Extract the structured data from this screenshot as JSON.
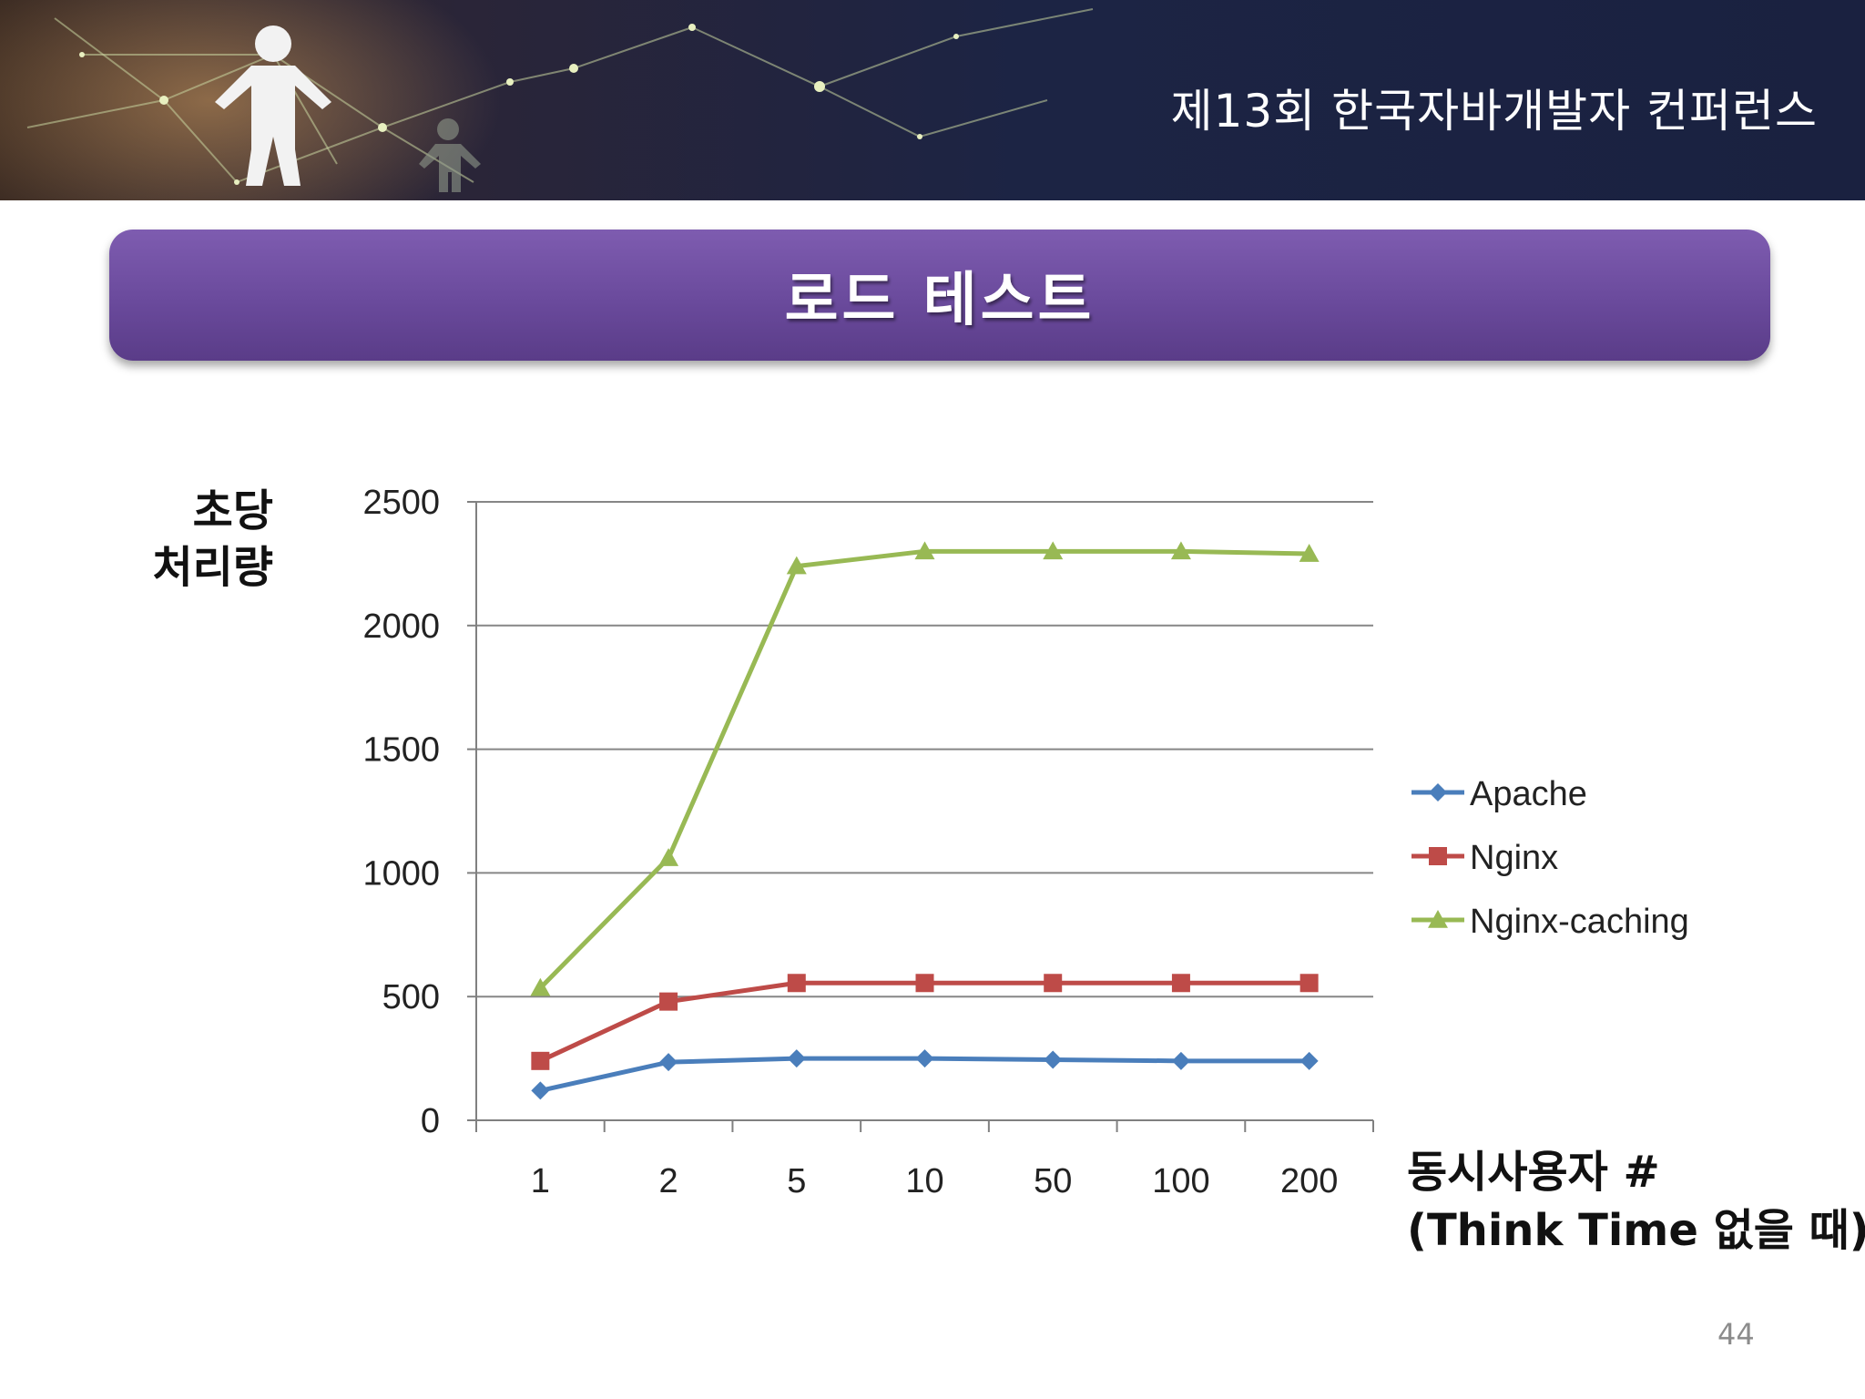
{
  "header": {
    "conference": "제13회 한국자바개발자 컨퍼런스",
    "slide_title": "로드 테스트",
    "page_number": "44"
  },
  "colors": {
    "banner": "#1c2444",
    "title_bar": "#6a4a9c",
    "apache": "#4a7ebb",
    "nginx": "#be4b48",
    "nginx_caching": "#98b954"
  },
  "chart_data": {
    "type": "line",
    "ylabel_lines": [
      "초당",
      "처리량"
    ],
    "xlabel_lines": [
      "동시사용자 #",
      "(Think Time 없을 때)"
    ],
    "categories": [
      "1",
      "2",
      "5",
      "10",
      "50",
      "100",
      "200"
    ],
    "yticks": [
      "0",
      "500",
      "1000",
      "1500",
      "2000",
      "2500"
    ],
    "ylim": [
      0,
      2500
    ],
    "grid": true,
    "legend_position": "right",
    "series": [
      {
        "name": "Apache",
        "marker": "diamond",
        "values": [
          120,
          235,
          250,
          250,
          245,
          240,
          240
        ]
      },
      {
        "name": "Nginx",
        "marker": "square",
        "values": [
          240,
          480,
          555,
          555,
          555,
          555,
          555
        ]
      },
      {
        "name": "Nginx-caching",
        "marker": "triangle",
        "values": [
          535,
          1060,
          2240,
          2300,
          2300,
          2300,
          2290
        ]
      }
    ]
  }
}
